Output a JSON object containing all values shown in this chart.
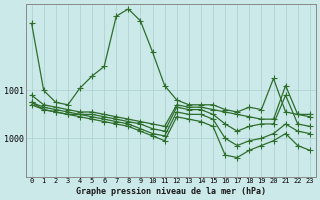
{
  "title": "Graphe pression niveau de la mer (hPa)",
  "x_labels": [
    "0",
    "1",
    "2",
    "3",
    "4",
    "5",
    "6",
    "7",
    "8",
    "9",
    "10",
    "11",
    "12",
    "13",
    "14",
    "15",
    "16",
    "17",
    "18",
    "19",
    "20",
    "21",
    "22",
    "23"
  ],
  "background_color": "#cce9e9",
  "grid_color": "#aacfcf",
  "line_color": "#2d6e2d",
  "y_ticks": [
    1000,
    1001
  ],
  "y_min": 999.2,
  "y_max": 1002.8,
  "series": [
    [
      1002.4,
      1001.0,
      1000.75,
      1000.7,
      1001.05,
      1001.3,
      1001.5,
      1002.55,
      1002.7,
      1002.45,
      1001.8,
      1001.1,
      1000.8,
      1000.7,
      1000.7,
      1000.7,
      1000.6,
      1000.55,
      1000.65,
      1000.6,
      1001.25,
      1000.55,
      1000.5,
      1000.5
    ],
    [
      1000.9,
      1000.7,
      1000.65,
      1000.6,
      1000.55,
      1000.55,
      1000.5,
      1000.45,
      1000.4,
      1000.35,
      1000.3,
      1000.25,
      1000.7,
      1000.65,
      1000.65,
      1000.6,
      1000.55,
      1000.5,
      1000.45,
      1000.4,
      1000.4,
      1001.1,
      1000.5,
      1000.45
    ],
    [
      1000.75,
      1000.65,
      1000.6,
      1000.55,
      1000.5,
      1000.5,
      1000.45,
      1000.4,
      1000.35,
      1000.3,
      1000.2,
      1000.15,
      1000.65,
      1000.6,
      1000.6,
      1000.5,
      1000.3,
      1000.15,
      1000.25,
      1000.3,
      1000.3,
      1000.9,
      1000.3,
      1000.25
    ],
    [
      1000.75,
      1000.6,
      1000.55,
      1000.5,
      1000.5,
      1000.45,
      1000.4,
      1000.35,
      1000.3,
      1000.2,
      1000.1,
      1000.05,
      1000.55,
      1000.5,
      1000.5,
      1000.4,
      1000.0,
      999.85,
      999.95,
      1000.0,
      1000.1,
      1000.3,
      1000.15,
      1000.1
    ],
    [
      1000.7,
      1000.6,
      1000.55,
      1000.5,
      1000.45,
      1000.4,
      1000.35,
      1000.3,
      1000.25,
      1000.15,
      1000.05,
      999.95,
      1000.45,
      1000.4,
      1000.35,
      1000.25,
      999.65,
      999.6,
      999.75,
      999.85,
      999.95,
      1000.1,
      999.85,
      999.75
    ]
  ],
  "marker": "+",
  "marker_size": 4,
  "linewidth": 0.9
}
